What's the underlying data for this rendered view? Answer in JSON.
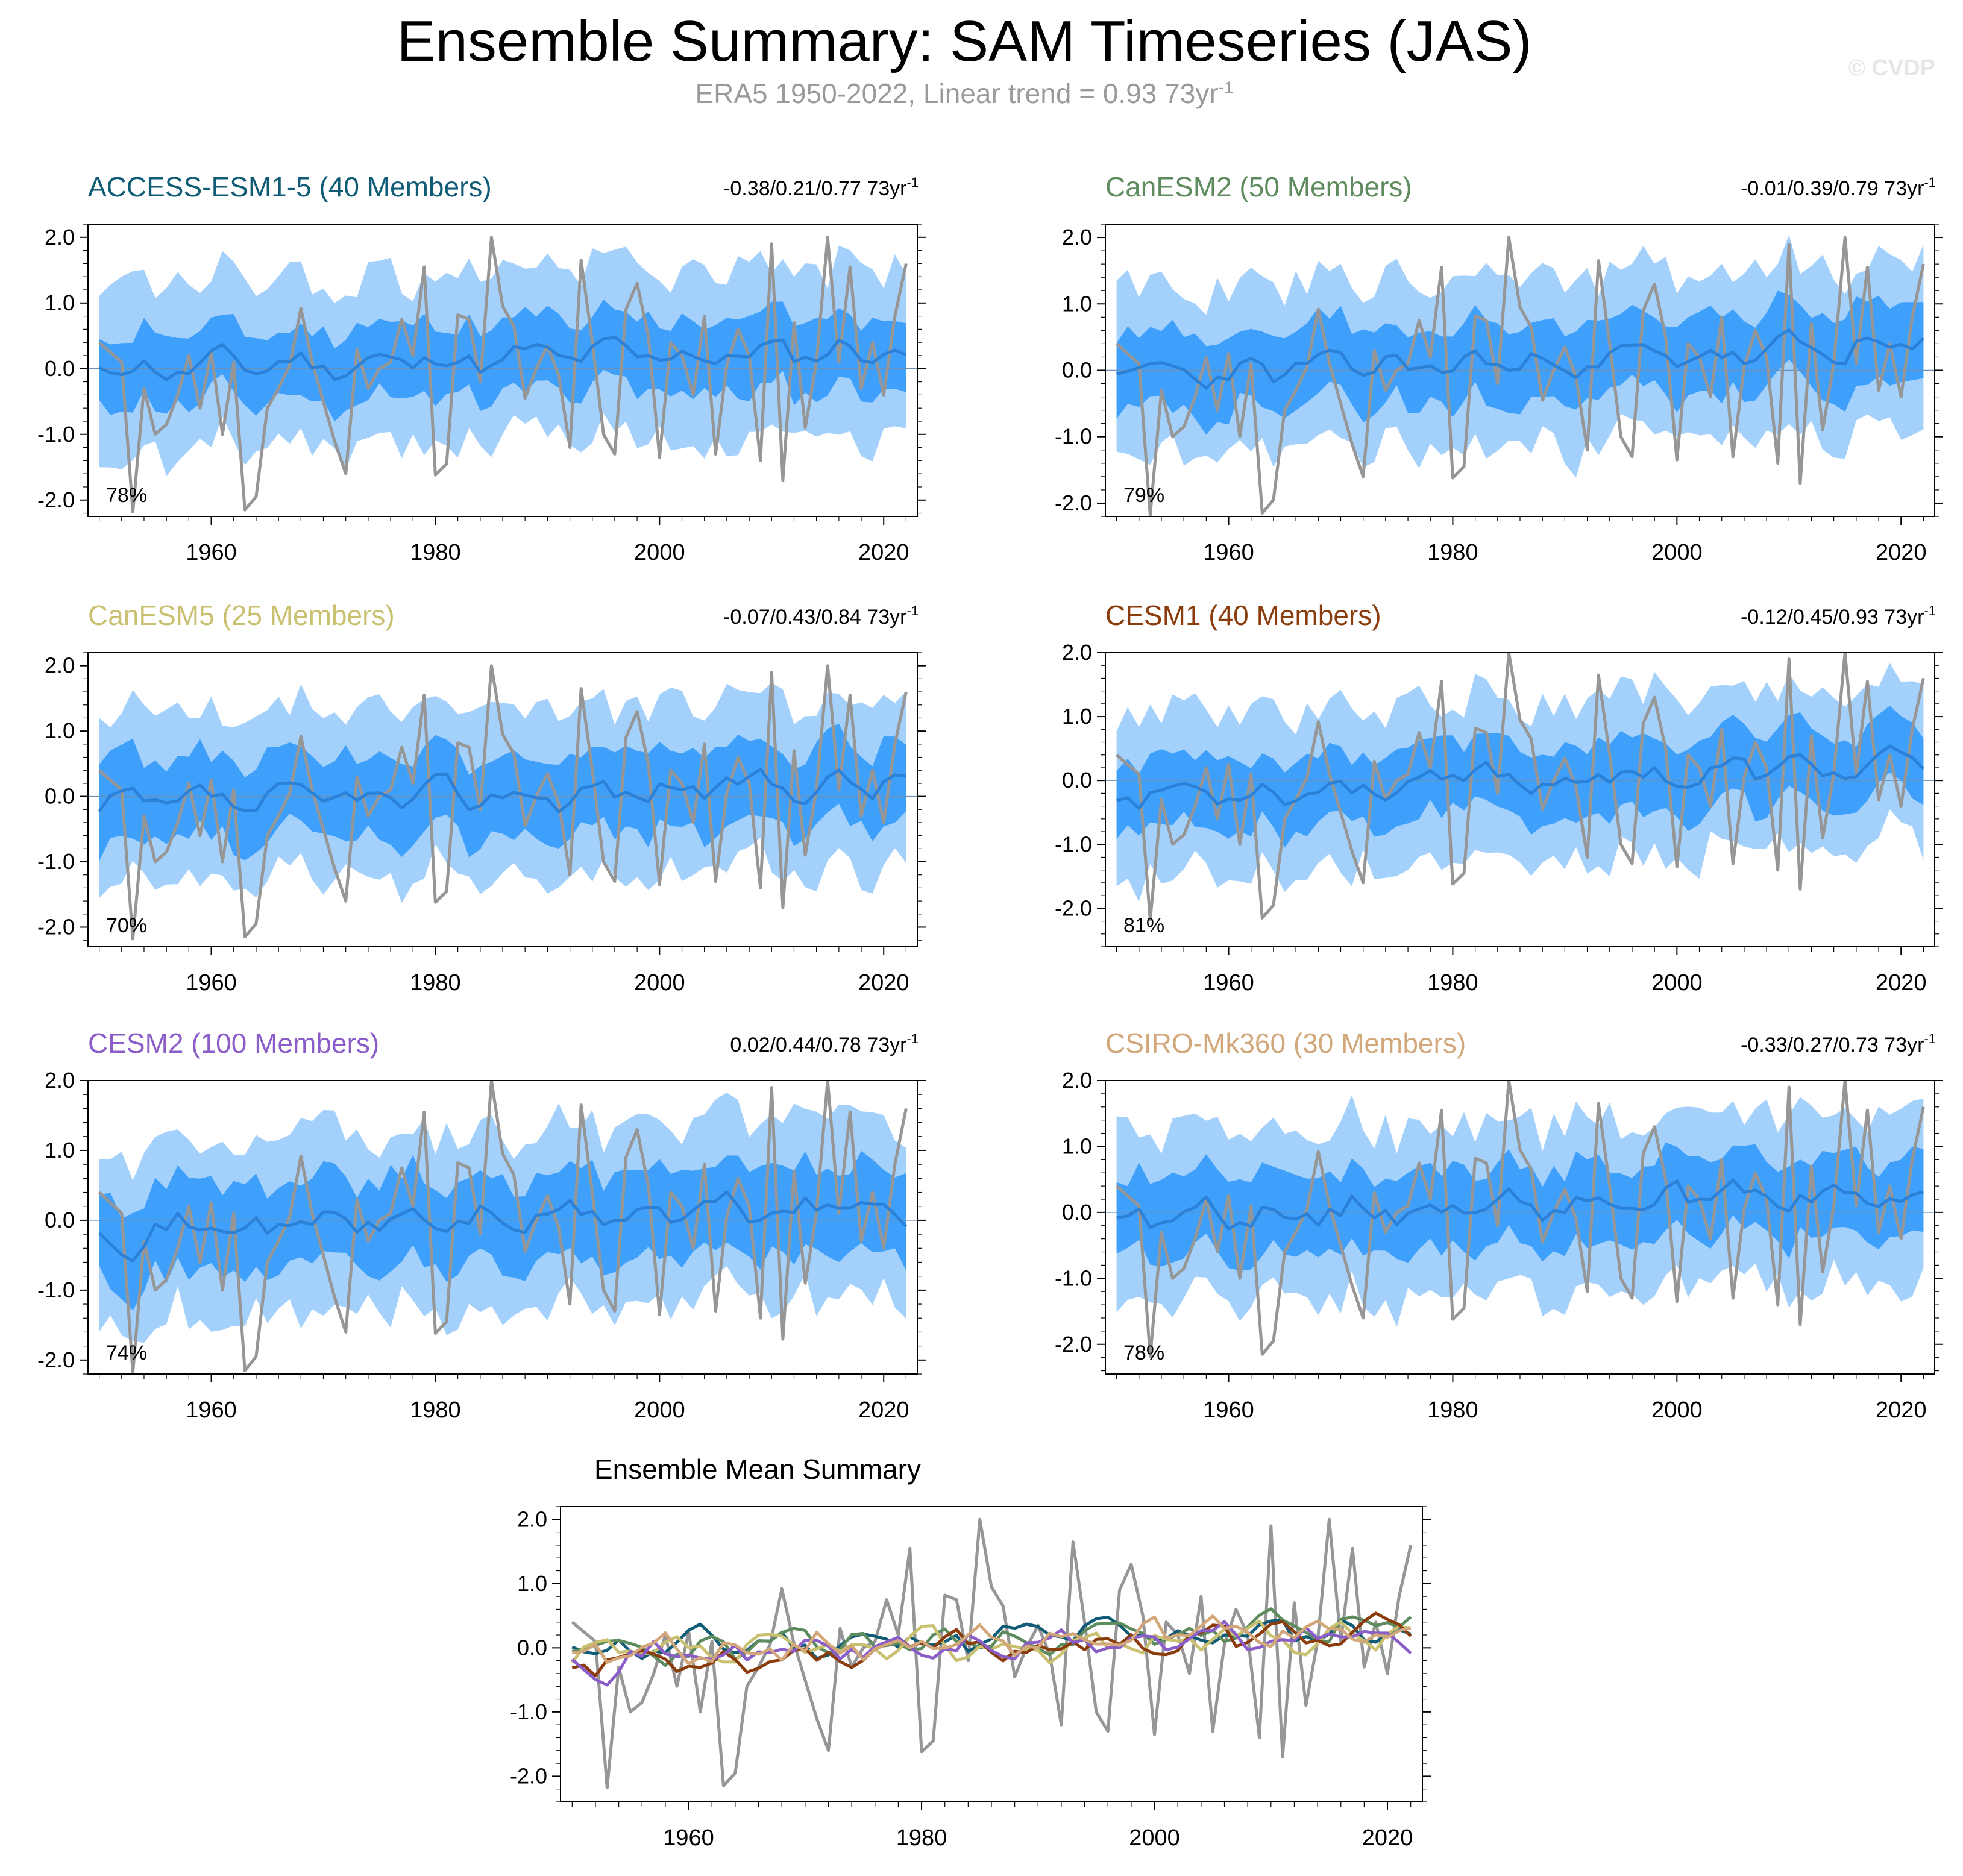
{
  "title": "Ensemble Summary: SAM Timeseries (JAS)",
  "subtitle": {
    "text": "ERA5 1950-2022, Linear trend = 0.93 73yr",
    "exp": "-1"
  },
  "watermark": "© CVDP",
  "colors": {
    "outer_band": "#a3d1fc",
    "inner_band": "#3fa0fb",
    "ens_mean_line": "#2b80d8",
    "obs_line": "#969696",
    "axis": "#000000"
  },
  "chart_data": [
    {
      "type": "area",
      "title": "ACCESS-ESM1-5 (40 Members)",
      "title_color": "#105b75",
      "trend_label": "-0.38/0.21/0.77 73yr",
      "trend_exp": "-1",
      "pct_label": "78%",
      "xlim": [
        1949,
        2023
      ],
      "ylim": [
        -2.25,
        2.2
      ],
      "yticks": [
        -2.0,
        -1.0,
        0.0,
        1.0,
        2.0
      ],
      "ytick_labels": [
        "-2.0",
        "-1.0",
        "0.0",
        "1.0",
        "2.0"
      ],
      "xticks": [
        1960,
        1980,
        2000,
        2020
      ],
      "xtick_labels": [
        "1960",
        "1980",
        "2000",
        "2020"
      ],
      "x_start": 1950,
      "seed": 11,
      "mean_offset": 0.0,
      "mean_trend": 0.004,
      "inner": 0.55,
      "outer": 1.28
    },
    {
      "type": "area",
      "title": "CanESM2 (50 Members)",
      "title_color": "#5e8b5e",
      "trend_label": "-0.01/0.39/0.79 73yr",
      "trend_exp": "-1",
      "pct_label": "79%",
      "xlim": [
        1949,
        2023
      ],
      "ylim": [
        -2.2,
        2.2
      ],
      "yticks": [
        -2.0,
        -1.0,
        0.0,
        1.0,
        2.0
      ],
      "ytick_labels": [
        "-2.0",
        "-1.0",
        "0.0",
        "1.0",
        "2.0"
      ],
      "xticks": [
        1960,
        1980,
        2000,
        2020
      ],
      "xtick_labels": [
        "1960",
        "1980",
        "2000",
        "2020"
      ],
      "x_start": 1950,
      "seed": 23,
      "mean_offset": -0.1,
      "mean_trend": 0.006,
      "inner": 0.58,
      "outer": 1.28
    },
    {
      "type": "area",
      "title": "CanESM5 (25 Members)",
      "title_color": "#c9c170",
      "trend_label": "-0.07/0.43/0.84 73yr",
      "trend_exp": "-1",
      "pct_label": "70%",
      "xlim": [
        1949,
        2023
      ],
      "ylim": [
        -2.3,
        2.2
      ],
      "yticks": [
        -2.0,
        -1.0,
        0.0,
        1.0,
        2.0
      ],
      "ytick_labels": [
        "-2.0",
        "-1.0",
        "0.0",
        "1.0",
        "2.0"
      ],
      "xticks": [
        1960,
        1980,
        2000,
        2020
      ],
      "xtick_labels": [
        "1960",
        "1980",
        "2000",
        "2020"
      ],
      "x_start": 1950,
      "seed": 37,
      "mean_offset": -0.2,
      "mean_trend": 0.006,
      "inner": 0.62,
      "outer": 1.3
    },
    {
      "type": "area",
      "title": "CESM1 (40 Members)",
      "title_color": "#8b3c0c",
      "trend_label": "-0.12/0.45/0.93 73yr",
      "trend_exp": "-1",
      "pct_label": "81%",
      "xlim": [
        1949,
        2023
      ],
      "ylim": [
        -2.6,
        2.0
      ],
      "yticks": [
        -2.0,
        -1.0,
        0.0,
        1.0,
        2.0
      ],
      "ytick_labels": [
        "-2.0",
        "-1.0",
        "0.0",
        "1.0",
        "2.0"
      ],
      "xticks": [
        1960,
        1980,
        2000,
        2020
      ],
      "xtick_labels": [
        "1960",
        "1980",
        "2000",
        "2020"
      ],
      "x_start": 1950,
      "seed": 53,
      "mean_offset": -0.2,
      "mean_trend": 0.006,
      "inner": 0.55,
      "outer": 1.25
    },
    {
      "type": "area",
      "title": "CESM2 (100 Members)",
      "title_color": "#8a5dc9",
      "trend_label": "0.02/0.44/0.78 73yr",
      "trend_exp": "-1",
      "pct_label": "74%",
      "xlim": [
        1949,
        2023
      ],
      "ylim": [
        -2.2,
        2.0
      ],
      "yticks": [
        -2.0,
        -1.0,
        0.0,
        1.0,
        2.0
      ],
      "ytick_labels": [
        "-2.0",
        "-1.0",
        "0.0",
        "1.0",
        "2.0"
      ],
      "xticks": [
        1960,
        1980,
        2000,
        2020
      ],
      "xtick_labels": [
        "1960",
        "1980",
        "2000",
        "2020"
      ],
      "x_start": 1950,
      "seed": 71,
      "mean_offset": -0.15,
      "mean_trend": 0.005,
      "inner": 0.62,
      "outer": 1.3
    },
    {
      "type": "area",
      "title": "CSIRO-Mk360 (30 Members)",
      "title_color": "#d2a779",
      "trend_label": "-0.33/0.27/0.73 73yr",
      "trend_exp": "-1",
      "pct_label": "78%",
      "xlim": [
        1949,
        2023
      ],
      "ylim": [
        -2.45,
        2.0
      ],
      "yticks": [
        -2.0,
        -1.0,
        0.0,
        1.0,
        2.0
      ],
      "ytick_labels": [
        "-2.0",
        "-1.0",
        "0.0",
        "1.0",
        "2.0"
      ],
      "xticks": [
        1960,
        1980,
        2000,
        2020
      ],
      "xtick_labels": [
        "1960",
        "1980",
        "2000",
        "2020"
      ],
      "x_start": 1950,
      "seed": 89,
      "mean_offset": -0.05,
      "mean_trend": 0.004,
      "inner": 0.6,
      "outer": 1.3
    },
    {
      "type": "line",
      "title": "Ensemble Mean Summary",
      "title_color": "#000000",
      "xlim": [
        1949,
        2023
      ],
      "ylim": [
        -2.4,
        2.2
      ],
      "yticks": [
        -2.0,
        -1.0,
        0.0,
        1.0,
        2.0
      ],
      "ytick_labels": [
        "-2.0",
        "-1.0",
        "0.0",
        "1.0",
        "2.0"
      ],
      "xticks": [
        1960,
        1980,
        2000,
        2020
      ],
      "xtick_labels": [
        "1960",
        "1980",
        "2000",
        "2020"
      ],
      "x_start": 1950
    }
  ],
  "observations": {
    "name": "ERA5",
    "x_start": 1950,
    "values": [
      0.4,
      0.25,
      0.1,
      -2.18,
      -0.3,
      -1.0,
      -0.85,
      -0.4,
      0.2,
      -0.6,
      0.25,
      -1.0,
      0.1,
      -2.15,
      -1.95,
      -0.6,
      -0.3,
      0.05,
      0.92,
      0.1,
      -0.5,
      -1.1,
      -1.6,
      0.3,
      -0.3,
      0.0,
      0.1,
      0.75,
      0.2,
      1.55,
      -1.62,
      -1.45,
      0.82,
      0.75,
      -0.2,
      2.0,
      0.95,
      0.65,
      -0.45,
      0.0,
      0.35,
      -0.1,
      -1.2,
      1.65,
      0.4,
      -1.0,
      -1.3,
      0.9,
      1.3,
      0.5,
      -1.35,
      0.4,
      0.2,
      -0.4,
      0.8,
      -1.3,
      0.05,
      0.6,
      0.2,
      -1.4,
      1.9,
      -1.7,
      0.7,
      -0.9,
      0.1,
      2.0,
      0.1,
      1.55,
      -0.3,
      0.4,
      -0.4,
      0.8,
      1.6
    ]
  },
  "ensemble_mean_series": [
    {
      "name": "ACCESS-ESM1-5",
      "color": "#105b75",
      "seed": 11,
      "offset": 0.0,
      "trend": 0.004
    },
    {
      "name": "CanESM2",
      "color": "#5e8b5e",
      "seed": 23,
      "offset": -0.1,
      "trend": 0.006
    },
    {
      "name": "CanESM5",
      "color": "#c9c170",
      "seed": 37,
      "offset": -0.2,
      "trend": 0.006
    },
    {
      "name": "CESM1",
      "color": "#8b3c0c",
      "seed": 53,
      "offset": -0.2,
      "trend": 0.006
    },
    {
      "name": "CESM2",
      "color": "#8a5dc9",
      "seed": 71,
      "offset": -0.15,
      "trend": 0.005
    },
    {
      "name": "CSIRO-Mk360",
      "color": "#d2a779",
      "seed": 89,
      "offset": -0.05,
      "trend": 0.004
    }
  ]
}
